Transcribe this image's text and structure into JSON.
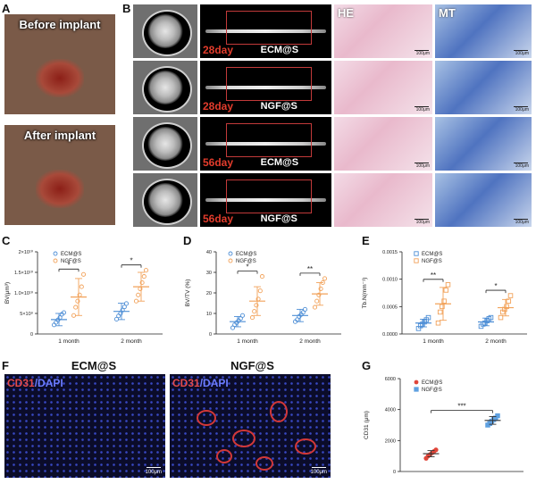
{
  "panels": {
    "A": {
      "letter": "A",
      "top_caption": "Before implant",
      "bottom_caption": "After implant"
    },
    "B": {
      "letter": "B",
      "he_label": "HE",
      "mt_label": "MT",
      "scale_bar": "100μm",
      "rows": [
        {
          "day": "28day",
          "group": "ECM@S"
        },
        {
          "day": "28day",
          "group": "NGF@S"
        },
        {
          "day": "56day",
          "group": "ECM@S"
        },
        {
          "day": "56day",
          "group": "NGF@S"
        }
      ]
    },
    "C": {
      "letter": "C"
    },
    "D": {
      "letter": "D"
    },
    "E": {
      "letter": "E"
    },
    "F": {
      "letter": "F",
      "left_title": "ECM@S",
      "right_title": "NGF@S",
      "stain_red": "CD31",
      "stain_sep": "/",
      "stain_blue": "DAPI",
      "scale_bar": "100μm"
    },
    "G": {
      "letter": "G"
    }
  },
  "colors": {
    "ecm": "#4f8fd6",
    "ngf": "#f2a25a",
    "g_ecm": "#e0463a",
    "g_ngf": "#5fa0e0",
    "day_label": "#e23c2c"
  },
  "chart_data": [
    {
      "id": "C",
      "type": "scatter",
      "ylabel": "BV(μm³)",
      "ytick_labels": [
        "0",
        "5×10⁹",
        "1.0×10¹⁰",
        "1.5×10¹⁰",
        "2×10¹⁰"
      ],
      "yticks": [
        0,
        5000000000.0,
        10000000000.0,
        15000000000.0,
        20000000000.0
      ],
      "ylim": [
        0,
        20000000000.0
      ],
      "categories": [
        "1 month",
        "2 month"
      ],
      "series": [
        {
          "name": "ECM@S",
          "means": [
            3500000000.0,
            5500000000.0
          ],
          "sd": [
            1500000000.0,
            2000000000.0
          ],
          "points": [
            [
              2200000000.0,
              2800000000.0,
              3400000000.0,
              4000000000.0,
              4800000000.0,
              5200000000.0
            ],
            [
              3600000000.0,
              4400000000.0,
              5000000000.0,
              5800000000.0,
              6600000000.0,
              7400000000.0
            ]
          ]
        },
        {
          "name": "NGF@S",
          "means": [
            9000000000.0,
            11500000000.0
          ],
          "sd": [
            4500000000.0,
            3500000000.0
          ],
          "points": [
            [
              4500000000.0,
              6500000000.0,
              8000000000.0,
              9500000000.0,
              11500000000.0,
              14500000000.0
            ],
            [
              8000000000.0,
              9500000000.0,
              11000000000.0,
              12500000000.0,
              14000000000.0,
              15500000000.0
            ]
          ]
        }
      ],
      "significance": [
        "*",
        "*"
      ]
    },
    {
      "id": "D",
      "type": "scatter",
      "ylabel": "BV/TV (%)",
      "ytick_labels": [
        "0",
        "10",
        "20",
        "30",
        "40"
      ],
      "yticks": [
        0,
        10,
        20,
        30,
        40
      ],
      "ylim": [
        0,
        40
      ],
      "categories": [
        "1 month",
        "2 month"
      ],
      "series": [
        {
          "name": "ECM@S",
          "means": [
            6,
            9
          ],
          "sd": [
            2.5,
            3
          ],
          "points": [
            [
              3,
              4.5,
              5.5,
              6.5,
              7.5,
              9
            ],
            [
              6,
              7,
              8.5,
              9.5,
              10.5,
              12
            ]
          ]
        },
        {
          "name": "NGF@S",
          "means": [
            16,
            19.5
          ],
          "sd": [
            7,
            5.5
          ],
          "points": [
            [
              8,
              11,
              14,
              17,
              21,
              28
            ],
            [
              13,
              16,
              19,
              22,
              25,
              27
            ]
          ]
        }
      ],
      "significance": [
        "*",
        "**"
      ]
    },
    {
      "id": "E",
      "type": "scatter",
      "ylabel": "Tb.N(mm⁻¹)",
      "ytick_labels": [
        "0.0000",
        "0.0005",
        "0.0010",
        "0.0015"
      ],
      "yticks": [
        0,
        0.0005,
        0.001,
        0.0015
      ],
      "ylim": [
        0,
        0.0015
      ],
      "categories": [
        "1 month",
        "2 month"
      ],
      "series": [
        {
          "name": "ECM@S",
          "means": [
            0.0002,
            0.00022
          ],
          "sd": [
            7e-05,
            7e-05
          ],
          "points": [
            [
              0.0001,
              0.00015,
              0.00018,
              0.00022,
              0.00026,
              0.0003
            ],
            [
              0.00014,
              0.00018,
              0.0002,
              0.00024,
              0.00028,
              0.0003
            ]
          ]
        },
        {
          "name": "NGF@S",
          "means": [
            0.00055,
            0.00048
          ],
          "sd": [
            0.0003,
            0.00015
          ],
          "points": [
            [
              0.0002,
              0.0004,
              0.0005,
              0.0006,
              0.0008,
              0.0009
            ],
            [
              0.0003,
              0.0004,
              0.00045,
              0.0005,
              0.0006,
              0.0007
            ]
          ]
        }
      ],
      "significance": [
        "**",
        "*"
      ]
    },
    {
      "id": "G",
      "type": "scatter",
      "ylabel": "CD31 (μm)",
      "ytick_labels": [
        "0",
        "2000",
        "4000",
        "6000"
      ],
      "yticks": [
        0,
        2000,
        4000,
        6000
      ],
      "ylim": [
        0,
        6000
      ],
      "categories": [
        "ECM@S",
        "NGF@S"
      ],
      "series": [
        {
          "name": "ECM@S",
          "means": [
            1150
          ],
          "sd": [
            200
          ],
          "points": [
            [
              850,
              1000,
              1100,
              1200,
              1300,
              1400
            ]
          ]
        },
        {
          "name": "NGF@S",
          "means": [
            3300
          ],
          "sd": [
            250
          ],
          "points": [
            [
              3000,
              3100,
              3250,
              3350,
              3450,
              3600
            ]
          ]
        }
      ],
      "significance": [
        "***"
      ]
    }
  ]
}
